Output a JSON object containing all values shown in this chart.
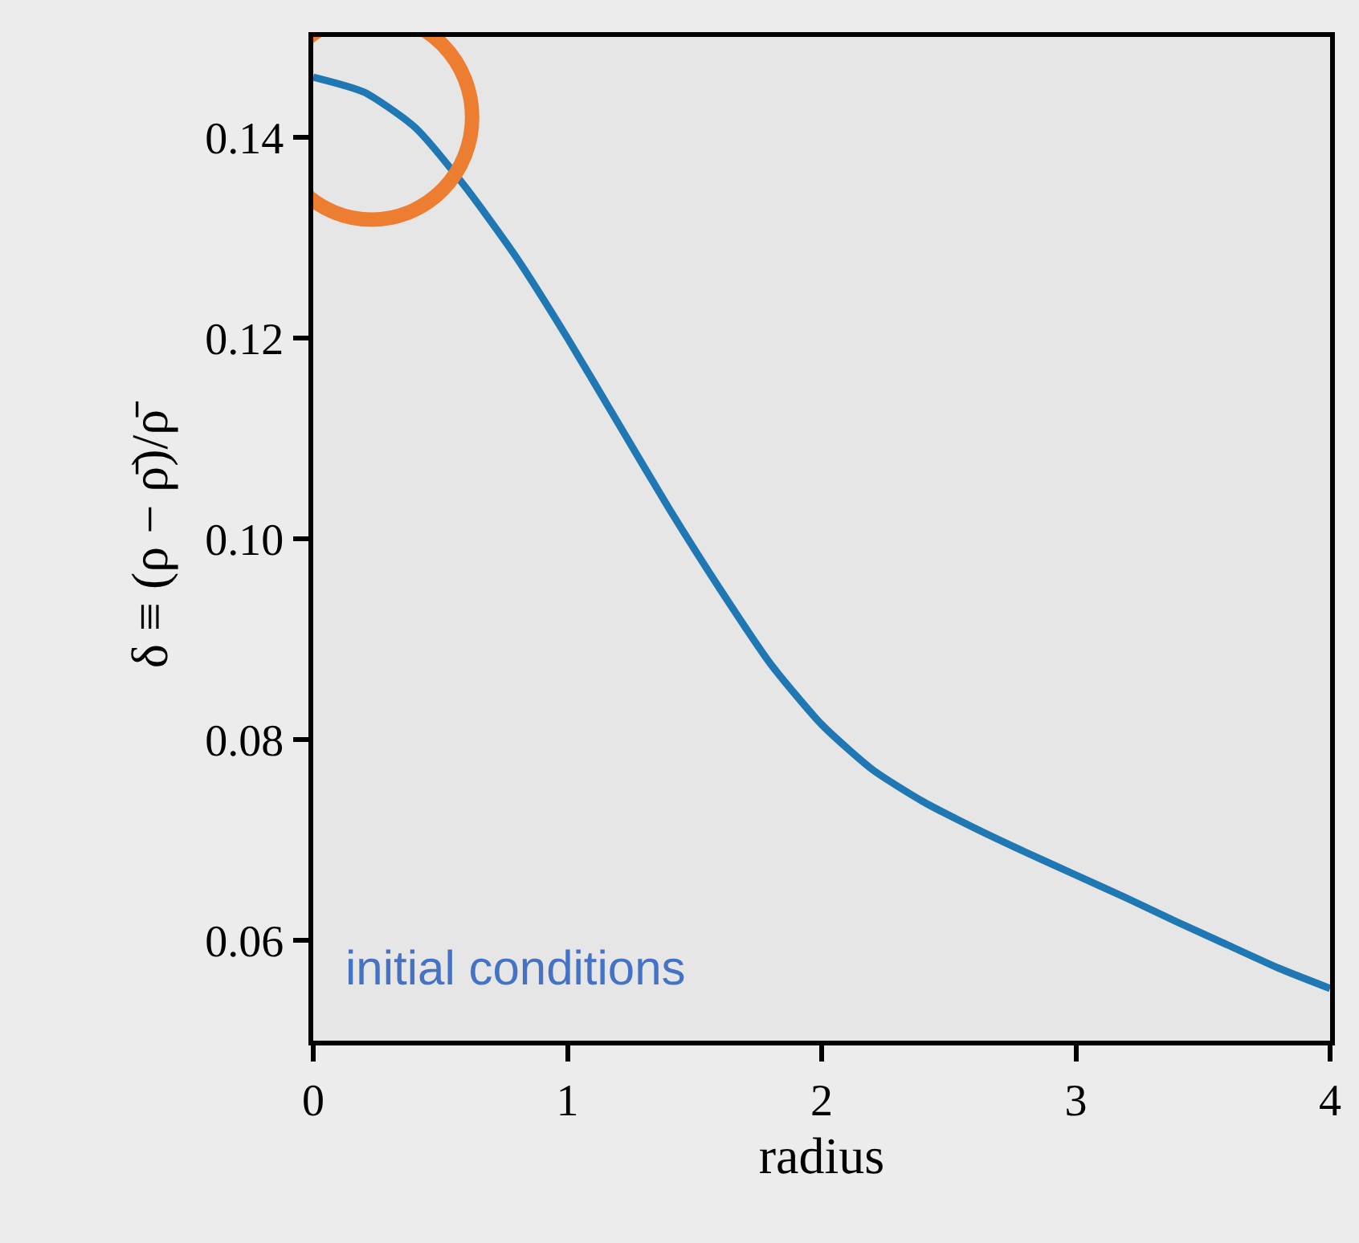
{
  "chart_data": {
    "type": "line",
    "xlabel": "radius",
    "ylabel": "δ ≡ (ρ − ρ̄)/ρ̄",
    "x": [
      0,
      0.2,
      0.4,
      0.6,
      0.8,
      1.0,
      1.2,
      1.4,
      1.6,
      1.8,
      2.0,
      2.2,
      2.4,
      2.6,
      2.8,
      3.0,
      3.2,
      3.4,
      3.6,
      3.8,
      4.0
    ],
    "series": [
      {
        "name": "initial conditions",
        "color": "#1f77b4",
        "values": [
          0.146,
          0.1445,
          0.141,
          0.135,
          0.128,
          0.12,
          0.1115,
          0.103,
          0.095,
          0.0875,
          0.0815,
          0.077,
          0.0738,
          0.0712,
          0.0688,
          0.0665,
          0.0642,
          0.0618,
          0.0595,
          0.0572,
          0.0552
        ]
      }
    ],
    "xlim": [
      0,
      4
    ],
    "xticks": [
      0,
      1,
      2,
      3,
      4
    ],
    "ylim": [
      0.05,
      0.15
    ],
    "yticks": [
      {
        "value": 0.06,
        "label": "0.06"
      },
      {
        "value": 0.08,
        "label": "0.08"
      },
      {
        "value": 0.1,
        "label": "0.10"
      },
      {
        "value": 0.12,
        "label": "0.12"
      },
      {
        "value": 0.14,
        "label": "0.14"
      }
    ],
    "grid": false,
    "legend": false,
    "marker": "none",
    "line_style": "solid"
  }
}
